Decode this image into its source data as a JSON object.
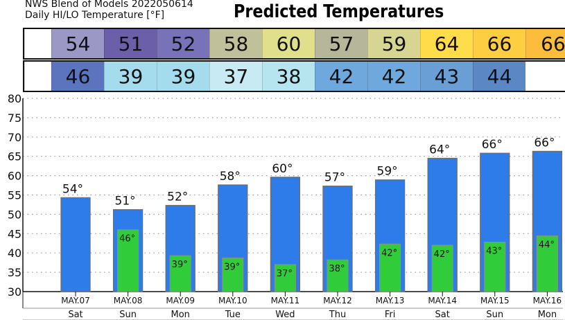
{
  "header": {
    "line1": "NWS Blend of Models 2022050614",
    "line2": "Daily HI/LO Temperature [°F]",
    "title": "Predicted Temperatures"
  },
  "hi_strip": [
    {
      "value": "",
      "color": "#ffffff"
    },
    {
      "value": "54",
      "color": "#9c98c6"
    },
    {
      "value": "51",
      "color": "#6a5fa8"
    },
    {
      "value": "52",
      "color": "#7872b8"
    },
    {
      "value": "58",
      "color": "#c0c09a"
    },
    {
      "value": "60",
      "color": "#dfdf8c"
    },
    {
      "value": "57",
      "color": "#b6b69a"
    },
    {
      "value": "59",
      "color": "#d6d692"
    },
    {
      "value": "64",
      "color": "#fedc4a"
    },
    {
      "value": "66",
      "color": "#fece42"
    },
    {
      "value": "66",
      "color": "#fcbc3c"
    }
  ],
  "lo_strip": [
    {
      "value": "",
      "color": "#ffffff"
    },
    {
      "value": "46",
      "color": "#5c74bd"
    },
    {
      "value": "39",
      "color": "#a4dced"
    },
    {
      "value": "39",
      "color": "#a4dced"
    },
    {
      "value": "37",
      "color": "#c8eaf2"
    },
    {
      "value": "38",
      "color": "#b6e4ef"
    },
    {
      "value": "42",
      "color": "#6ea8dc"
    },
    {
      "value": "42",
      "color": "#6ea8dc"
    },
    {
      "value": "43",
      "color": "#6a9fd6"
    },
    {
      "value": "44",
      "color": "#5b88c4"
    }
  ],
  "chart_data": {
    "type": "bar",
    "categories": [
      "MAY.07",
      "MAY.08",
      "MAY.09",
      "MAY.10",
      "MAY.11",
      "MAY.12",
      "MAY.13",
      "MAY.14",
      "MAY.15",
      "MAY.16"
    ],
    "days": [
      "Sat",
      "Sun",
      "Mon",
      "Tue",
      "Wed",
      "Thu",
      "Fri",
      "Sat",
      "Sun",
      "Mon"
    ],
    "series": [
      {
        "values": [
          54.3,
          51.2,
          52.3,
          57.6,
          59.6,
          57.3,
          58.9,
          64.5,
          65.8,
          66.3
        ],
        "labels": [
          "54°",
          "51°",
          "52°",
          "58°",
          "60°",
          "57°",
          "59°",
          "64°",
          "66°",
          "66°"
        ],
        "color": "#2e7bea"
      },
      {
        "values": [
          null,
          46.0,
          39.3,
          38.7,
          37.0,
          38.2,
          42.3,
          42.0,
          42.8,
          44.4
        ],
        "labels": [
          "",
          "46°",
          "39°",
          "39°",
          "37°",
          "38°",
          "42°",
          "42°",
          "43°",
          "44°"
        ],
        "color": "#31cc3a"
      }
    ],
    "ylim": [
      30,
      80
    ],
    "yticks": [
      30,
      35,
      40,
      45,
      50,
      55,
      60,
      65,
      70,
      75,
      80
    ],
    "grid": true
  }
}
